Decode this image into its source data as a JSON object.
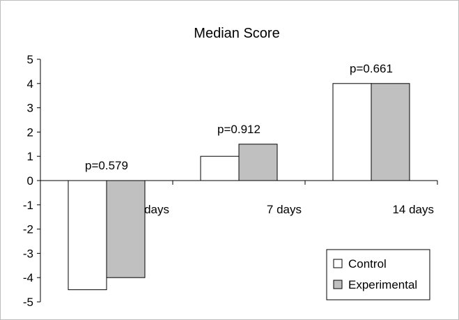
{
  "chart_data": {
    "type": "bar",
    "title": "Median Score",
    "xlabel": "",
    "ylabel": "",
    "categories": [
      "3 days",
      "7 days",
      "14 days"
    ],
    "series": [
      {
        "name": "Control",
        "values": [
          -4.5,
          1,
          4
        ],
        "color": "#ffffff"
      },
      {
        "name": "Experimental",
        "values": [
          -4,
          1.5,
          4
        ],
        "color": "#c0c0c0"
      }
    ],
    "annotations": [
      "p=0.579",
      "p=0.912",
      "p=0.661"
    ],
    "ylim": [
      -5,
      5
    ],
    "yticks": [
      "5",
      "4",
      "3",
      "2",
      "1",
      "0",
      "-1",
      "-2",
      "-3",
      "-4",
      "-5"
    ],
    "grid": false,
    "legend_position": "bottom-right"
  }
}
